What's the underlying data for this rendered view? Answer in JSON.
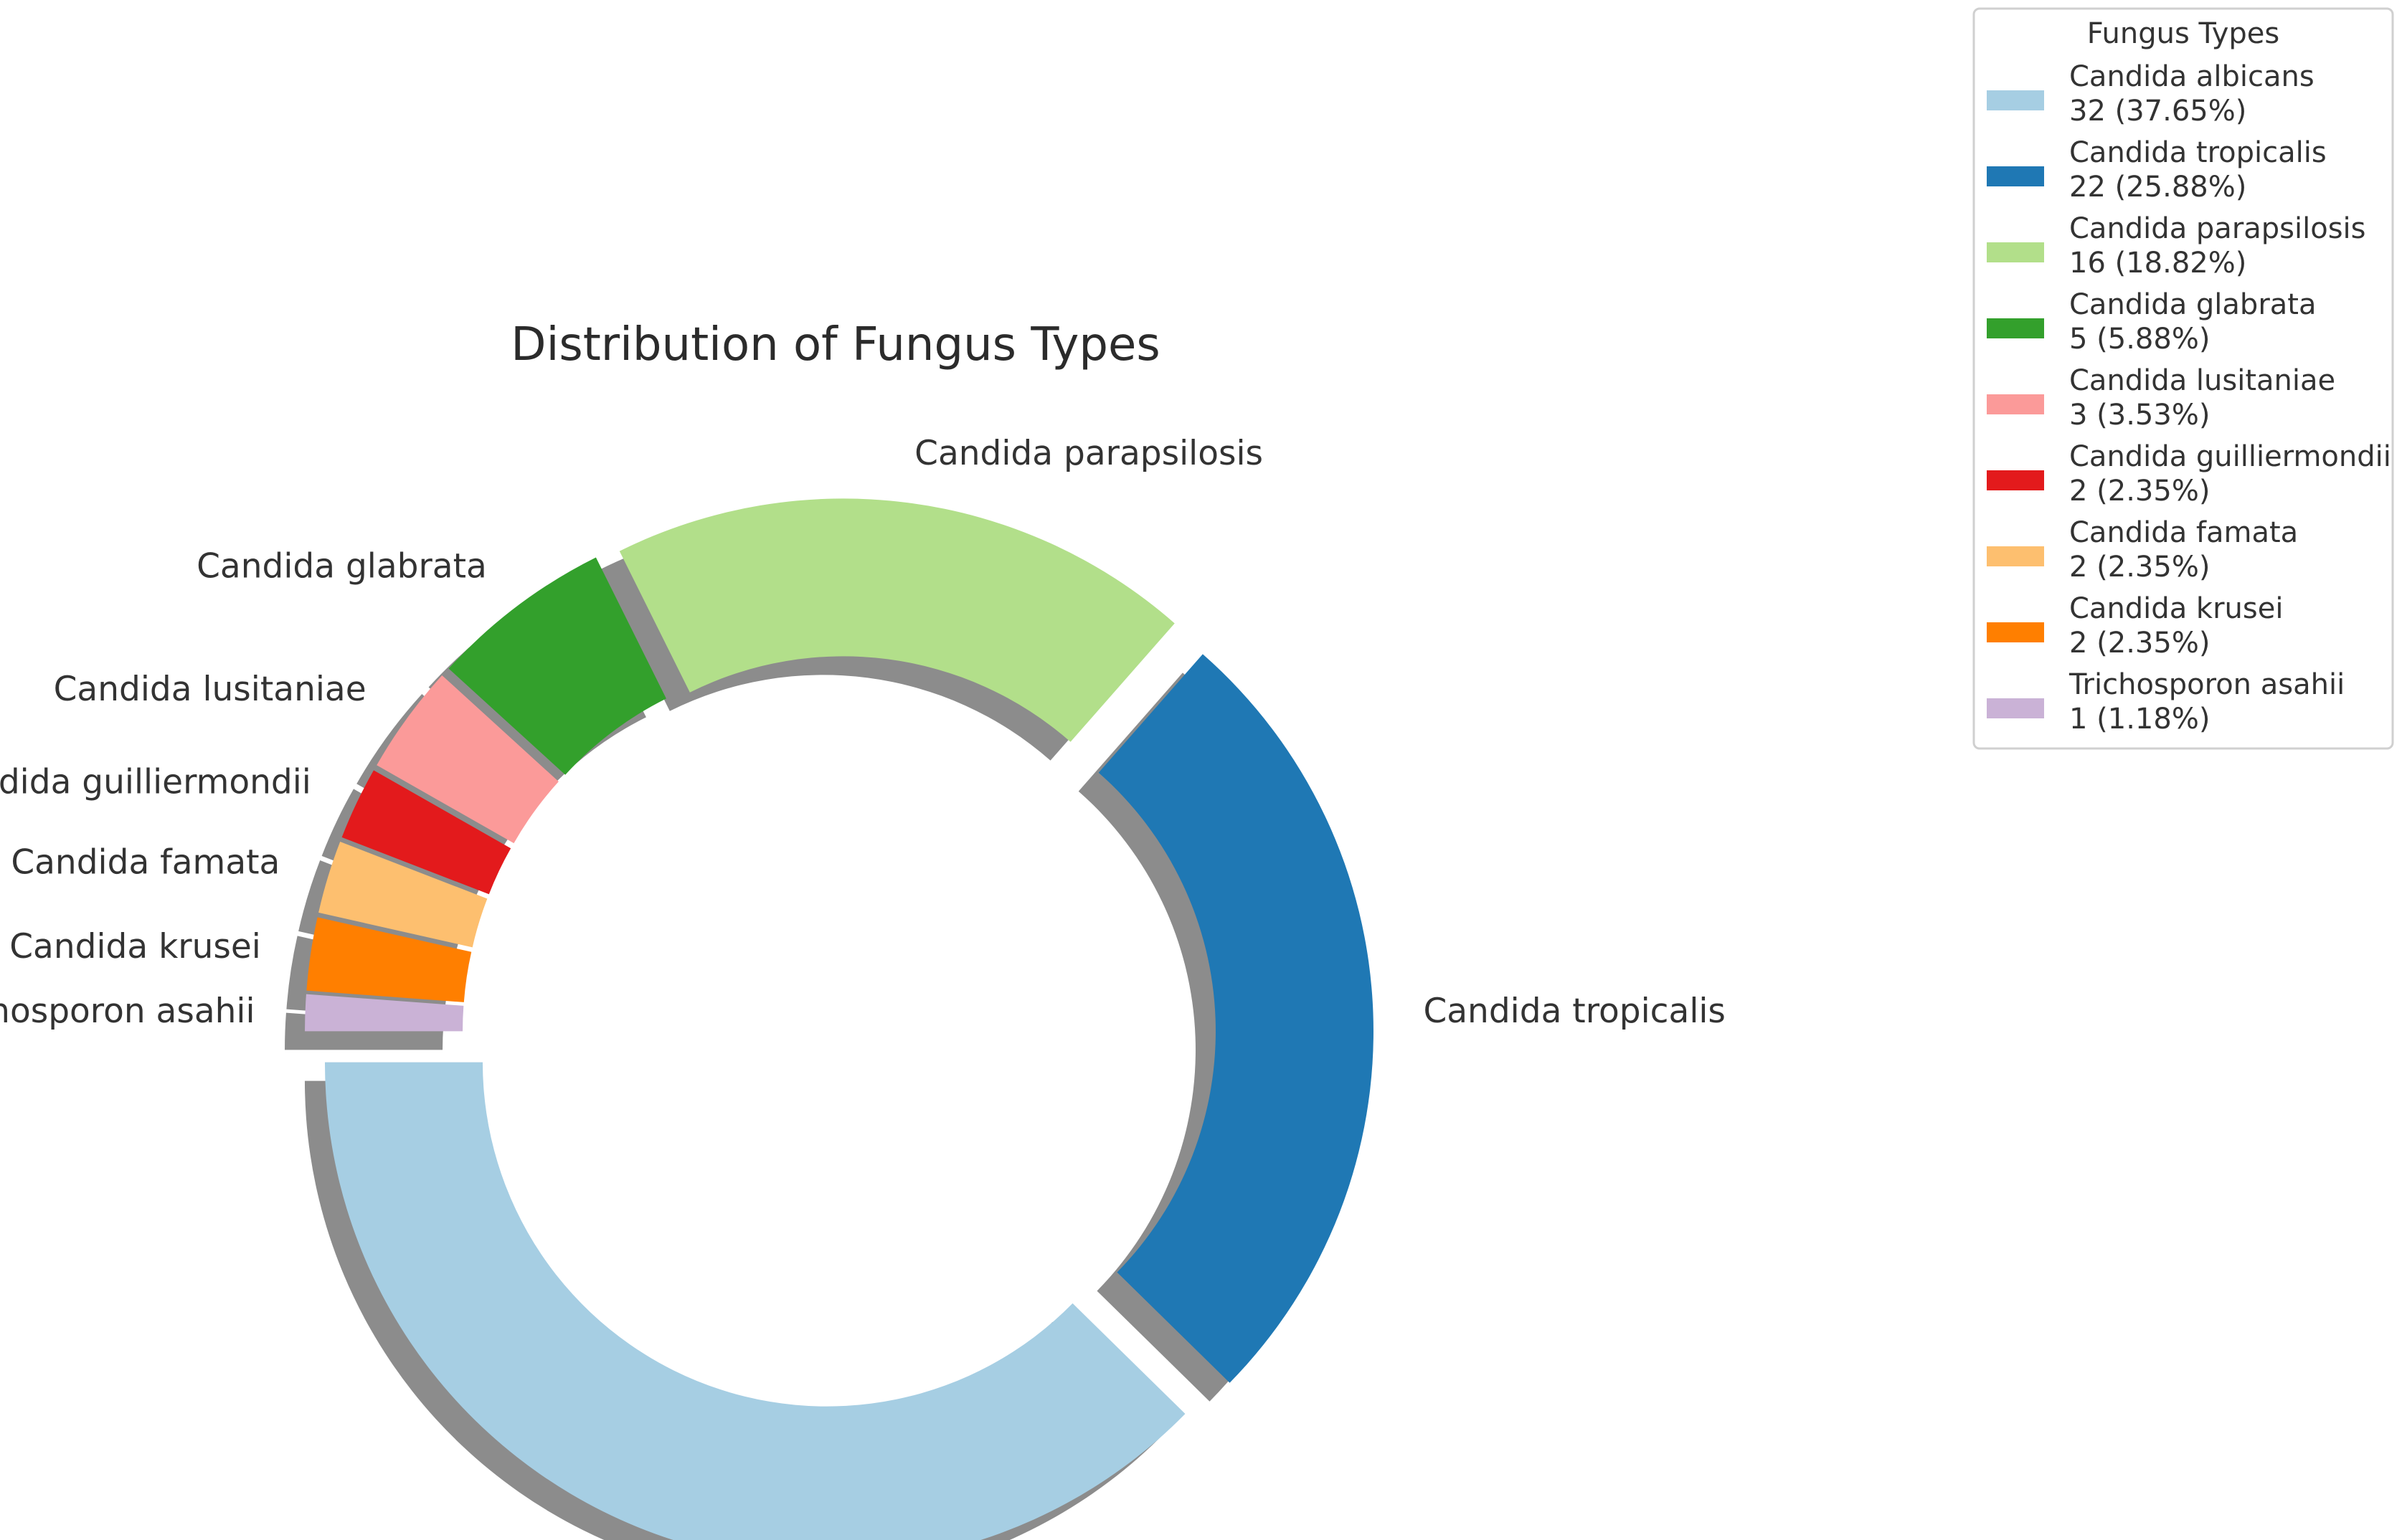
{
  "chart_data": {
    "type": "pie",
    "style": "donut",
    "title": "Distribution of Fungus Types",
    "legend": {
      "title": "Fungus Types",
      "position": "top-right"
    },
    "slices": [
      {
        "label": "Candida albicans",
        "value": 32,
        "percent": "37.65%",
        "legend_value": "32 (37.65%)",
        "color": "#a6cee3"
      },
      {
        "label": "Candida tropicalis",
        "value": 22,
        "percent": "25.88%",
        "legend_value": "22 (25.88%)",
        "color": "#1f78b4"
      },
      {
        "label": "Candida parapsilosis",
        "value": 16,
        "percent": "18.82%",
        "legend_value": "16 (18.82%)",
        "color": "#b2df8a"
      },
      {
        "label": "Candida glabrata",
        "value": 5,
        "percent": "5.88%",
        "legend_value": "5 (5.88%)",
        "color": "#33a02c"
      },
      {
        "label": "Candida lusitaniae",
        "value": 3,
        "percent": "3.53%",
        "legend_value": "3 (3.53%)",
        "color": "#fb9a99"
      },
      {
        "label": "Candida guilliermondii",
        "value": 2,
        "percent": "2.35%",
        "legend_value": "2 (2.35%)",
        "color": "#e31a1c"
      },
      {
        "label": "Candida famata",
        "value": 2,
        "percent": "2.35%",
        "legend_value": "2 (2.35%)",
        "color": "#fdbf6f"
      },
      {
        "label": "Candida krusei",
        "value": 2,
        "percent": "2.35%",
        "legend_value": "2 (2.35%)",
        "color": "#ff7f00"
      },
      {
        "label": "Trichosporon asahii",
        "value": 1,
        "percent": "1.18%",
        "legend_value": "1 (1.18%)",
        "color": "#cab2d6"
      }
    ],
    "shadow": true,
    "exploded": true,
    "shadow_color": "#8c8c8c"
  }
}
